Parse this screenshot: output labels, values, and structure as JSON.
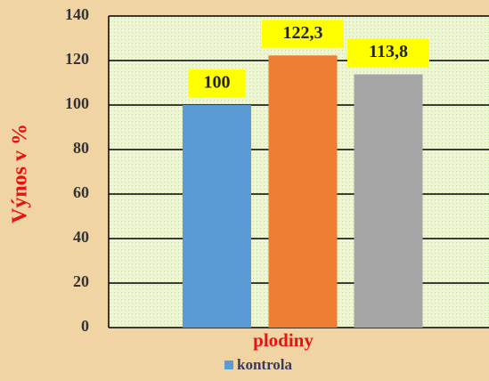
{
  "chart_data": {
    "type": "bar",
    "y_label": "Výnos v %",
    "x_label": "plodiny",
    "categories": [
      null,
      null,
      null
    ],
    "series": [
      {
        "name": "kontrola",
        "color": "#5b9bd5",
        "values": [
          100,
          122.3,
          113.8
        ],
        "value_labels": [
          "100",
          "122,3",
          "113,8"
        ]
      }
    ],
    "bar_colors": [
      "#5b9bd5",
      "#ed7d31",
      "#a5a5a5"
    ],
    "ylim": [
      0,
      140
    ],
    "yticks": [
      0,
      20,
      40,
      60,
      80,
      100,
      120,
      140
    ],
    "grid": true
  }
}
